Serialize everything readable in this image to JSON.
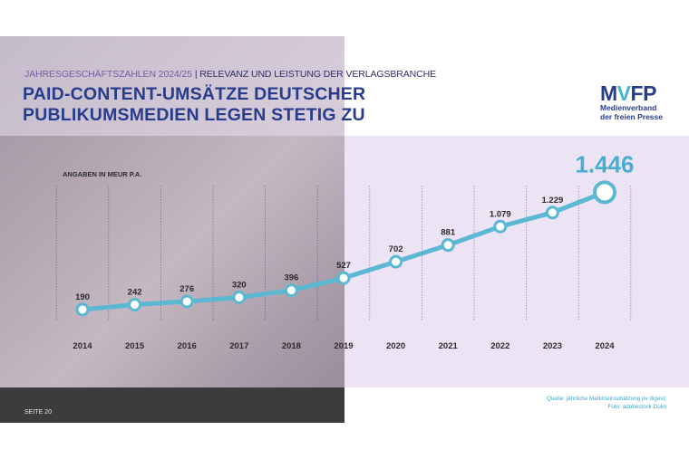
{
  "header": {
    "subtitle_part1": "JAHRESGESCHÄFTSZAHLEN 2024/25",
    "subtitle_separator": "|",
    "subtitle_part2": "RELEVANZ UND LEISTUNG DER VERLAGSBRANCHE",
    "title_line1": "PAID-CONTENT-UMSÄTZE DEUTSCHER",
    "title_line2": "PUBLIKUMSMEDIEN LEGEN STETIG ZU"
  },
  "logo": {
    "mark_m": "M",
    "mark_v": "V",
    "mark_fp": "FP",
    "line1": "Medienverband",
    "line2": "der freien Presse"
  },
  "footer": {
    "page": "SEITE 20",
    "source_line1": "Quelle: jährliche Marktneinschätzung pv digest;",
    "source_line2": "Foto: adobestock Dulin"
  },
  "colors": {
    "line": "#5ab8d2",
    "title": "#283c8c",
    "highlight": "#46aed0",
    "background_panel": "#ece4f4"
  },
  "chart_data": {
    "type": "line",
    "unit_label": "ANGABEN IN MEUR P.A.",
    "categories": [
      "2014",
      "2015",
      "2016",
      "2017",
      "2018",
      "2019",
      "2020",
      "2021",
      "2022",
      "2023",
      "2024"
    ],
    "value_labels": [
      "190",
      "242",
      "276",
      "320",
      "396",
      "527",
      "702",
      "881",
      "1.079",
      "1.229",
      "1.446"
    ],
    "series": [
      {
        "values": [
          190,
          242,
          276,
          320,
          396,
          527,
          702,
          881,
          1079,
          1229,
          1446
        ]
      }
    ],
    "ylim": [
      0,
      1500
    ],
    "grid": "vertical",
    "highlight_last": true
  }
}
